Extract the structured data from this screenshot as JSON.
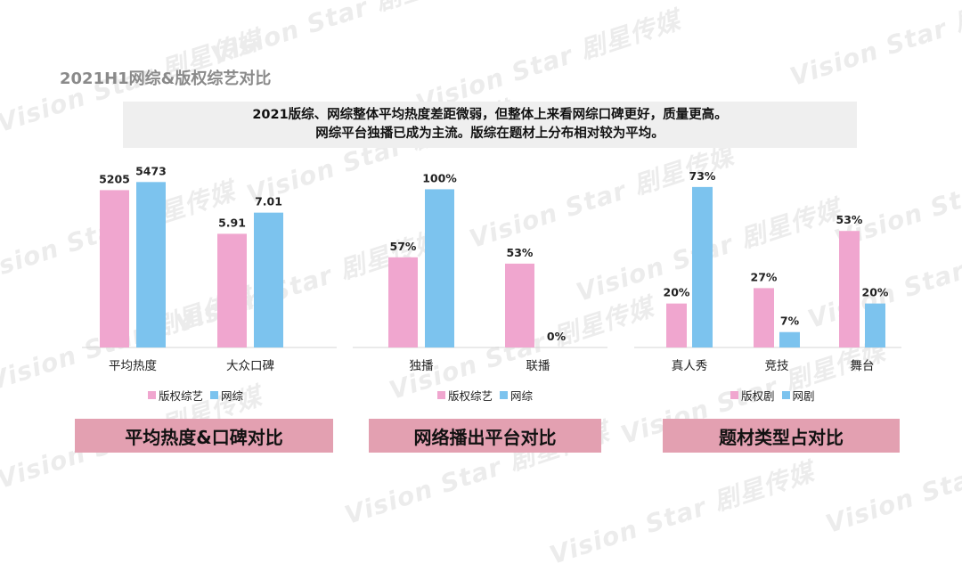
{
  "title": "2021H1网综&版权综艺对比",
  "summary": {
    "line1": "2021版综、网综整体平均热度差距微弱，但整体上来看网综口碑更好，质量更高。",
    "line2": "网综平台独播已成为主流。版综在题材上分布相对较为平均。"
  },
  "watermark": "Vision Star 剧星传媒",
  "colors": {
    "pink": "#f0a6cf",
    "blue": "#7cc3ee",
    "banner": "#e3a0b1"
  },
  "chart_data": [
    {
      "type": "bar",
      "categories": [
        "平均热度",
        "大众口碑"
      ],
      "series": [
        {
          "name": "版权综艺",
          "values": [
            5205,
            5.91
          ],
          "labels": [
            "5205",
            "5.91"
          ],
          "color": "#f0a6cf"
        },
        {
          "name": "网综",
          "values": [
            5473,
            7.01
          ],
          "labels": [
            "5473",
            "7.01"
          ],
          "color": "#7cc3ee"
        }
      ],
      "banner": "平均热度&口碑对比"
    },
    {
      "type": "bar",
      "categories": [
        "独播",
        "联播"
      ],
      "series": [
        {
          "name": "版权综艺",
          "values": [
            57,
            53
          ],
          "labels": [
            "57%",
            "53%"
          ],
          "color": "#f0a6cf"
        },
        {
          "name": "网综",
          "values": [
            100,
            0
          ],
          "labels": [
            "100%",
            "0%"
          ],
          "color": "#7cc3ee"
        }
      ],
      "banner": "网络播出平台对比"
    },
    {
      "type": "bar",
      "categories": [
        "真人秀",
        "竞技",
        "舞台"
      ],
      "series": [
        {
          "name": "版权剧",
          "values": [
            20,
            27,
            53
          ],
          "labels": [
            "20%",
            "27%",
            "53%"
          ],
          "color": "#f0a6cf"
        },
        {
          "name": "网剧",
          "values": [
            73,
            7,
            20
          ],
          "labels": [
            "73%",
            "7%",
            "20%"
          ],
          "color": "#7cc3ee"
        }
      ],
      "banner": "题材类型占对比"
    }
  ]
}
